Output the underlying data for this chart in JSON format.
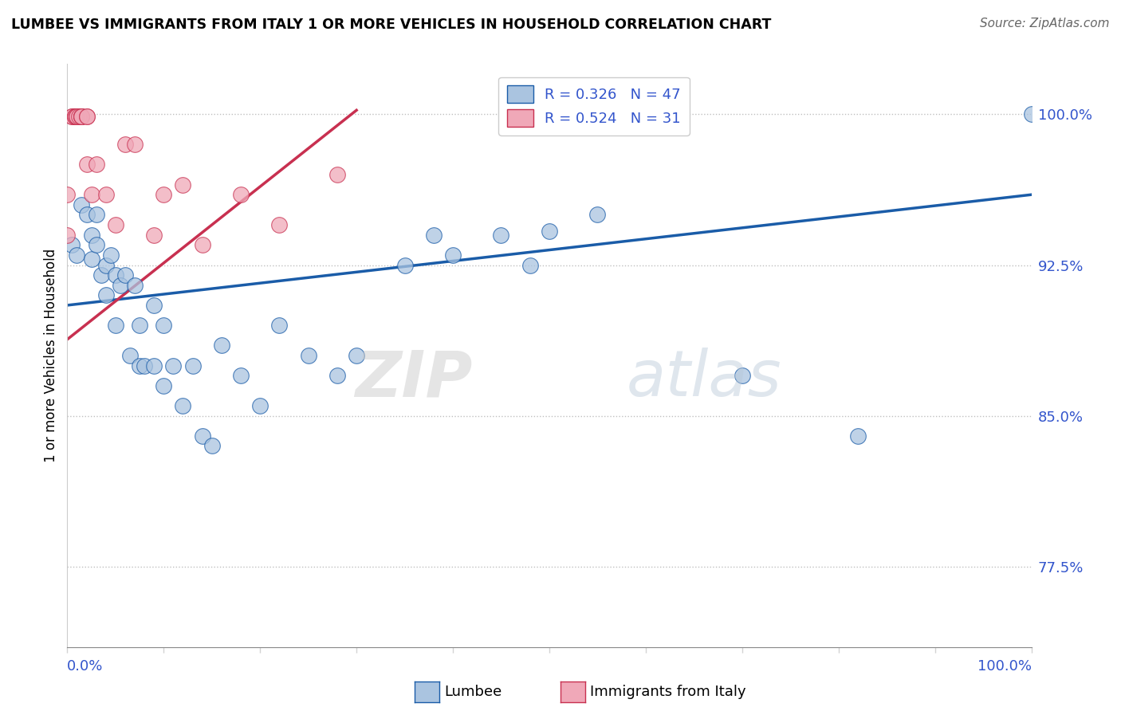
{
  "title": "LUMBEE VS IMMIGRANTS FROM ITALY 1 OR MORE VEHICLES IN HOUSEHOLD CORRELATION CHART",
  "source": "Source: ZipAtlas.com",
  "ylabel": "1 or more Vehicles in Household",
  "ytick_labels": [
    "77.5%",
    "85.0%",
    "92.5%",
    "100.0%"
  ],
  "ytick_values": [
    0.775,
    0.85,
    0.925,
    1.0
  ],
  "xlim": [
    0.0,
    1.0
  ],
  "ylim": [
    0.735,
    1.025
  ],
  "legend_lumbee": "Lumbee",
  "legend_italy": "Immigrants from Italy",
  "R_lumbee": 0.326,
  "N_lumbee": 47,
  "R_italy": 0.524,
  "N_italy": 31,
  "watermark": "ZIPatlas",
  "blue_color": "#aac4e0",
  "pink_color": "#f0a8b8",
  "blue_line_color": "#1a5ca8",
  "pink_line_color": "#c83050",
  "lumbee_x": [
    0.005,
    0.01,
    0.015,
    0.02,
    0.025,
    0.025,
    0.03,
    0.03,
    0.035,
    0.04,
    0.04,
    0.045,
    0.05,
    0.05,
    0.055,
    0.06,
    0.065,
    0.07,
    0.075,
    0.075,
    0.08,
    0.09,
    0.09,
    0.1,
    0.1,
    0.11,
    0.12,
    0.13,
    0.14,
    0.15,
    0.16,
    0.18,
    0.2,
    0.22,
    0.25,
    0.28,
    0.3,
    0.35,
    0.38,
    0.4,
    0.45,
    0.48,
    0.5,
    0.55,
    0.7,
    0.82,
    1.0
  ],
  "lumbee_y": [
    0.935,
    0.93,
    0.955,
    0.95,
    0.928,
    0.94,
    0.935,
    0.95,
    0.92,
    0.925,
    0.91,
    0.93,
    0.92,
    0.895,
    0.915,
    0.92,
    0.88,
    0.915,
    0.895,
    0.875,
    0.875,
    0.905,
    0.875,
    0.895,
    0.865,
    0.875,
    0.855,
    0.875,
    0.84,
    0.835,
    0.885,
    0.87,
    0.855,
    0.895,
    0.88,
    0.87,
    0.88,
    0.925,
    0.94,
    0.93,
    0.94,
    0.925,
    0.942,
    0.95,
    0.87,
    0.84,
    1.0
  ],
  "italy_x": [
    0.0,
    0.0,
    0.005,
    0.005,
    0.008,
    0.008,
    0.008,
    0.01,
    0.01,
    0.01,
    0.012,
    0.015,
    0.015,
    0.015,
    0.015,
    0.02,
    0.02,
    0.02,
    0.025,
    0.03,
    0.04,
    0.05,
    0.06,
    0.07,
    0.09,
    0.1,
    0.12,
    0.14,
    0.18,
    0.22,
    0.28
  ],
  "italy_y": [
    0.94,
    0.96,
    0.999,
    0.999,
    0.999,
    0.999,
    0.999,
    0.999,
    0.999,
    0.999,
    0.999,
    0.999,
    0.999,
    0.999,
    0.999,
    0.999,
    0.999,
    0.975,
    0.96,
    0.975,
    0.96,
    0.945,
    0.985,
    0.985,
    0.94,
    0.96,
    0.965,
    0.935,
    0.96,
    0.945,
    0.97
  ],
  "blue_trend_x": [
    0.0,
    1.0
  ],
  "blue_trend_y": [
    0.905,
    0.96
  ],
  "pink_trend_x": [
    0.0,
    0.3
  ],
  "pink_trend_y": [
    0.888,
    1.002
  ]
}
